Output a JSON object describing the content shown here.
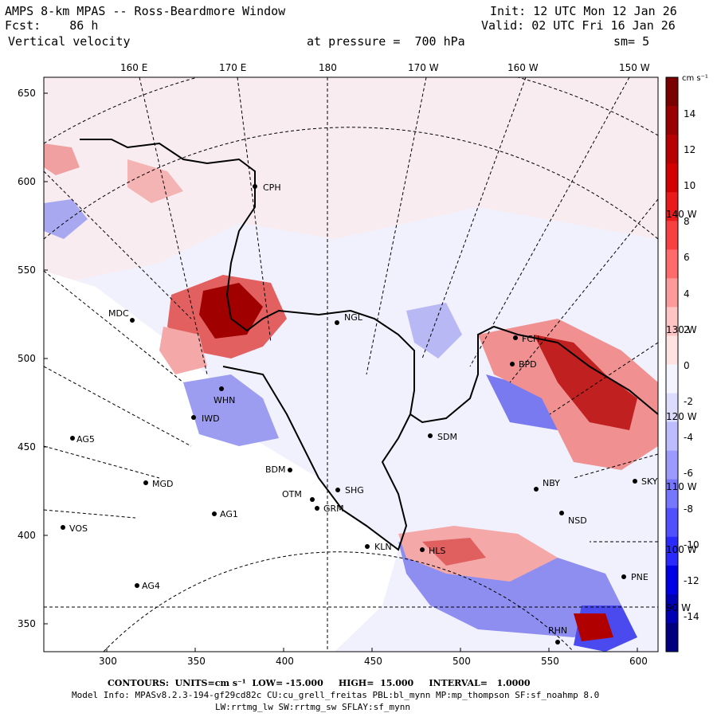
{
  "header": {
    "title": "AMPS 8-km MPAS -- Ross-Beardmore Window",
    "fcst": "Fcst:    86 h",
    "field": "Vertical velocity",
    "init": "Init: 12 UTC Mon 12 Jan 26",
    "valid": "Valid: 02 UTC Fri 16 Jan 26",
    "pressure": "at pressure =  700 hPa",
    "smooth": "sm= 5"
  },
  "top_labels": [
    "160 E",
    "170 E",
    "180",
    "170 W",
    "160 W",
    "150 W"
  ],
  "left_labels": [
    "650",
    "600",
    "550",
    "500",
    "450",
    "400",
    "350"
  ],
  "bottom_labels": [
    "300",
    "350",
    "400",
    "450",
    "500",
    "550",
    "600"
  ],
  "inner_lon_labels": [
    "140 W",
    "130 W",
    "120 W",
    "110 W",
    "100 W",
    "90 W"
  ],
  "colorbar": {
    "units": "cm s⁻¹",
    "ticks": [
      "14",
      "12",
      "10",
      "8",
      "6",
      "4",
      "2",
      "0",
      "-2",
      "-4",
      "-6",
      "-8",
      "-10",
      "-12",
      "-14"
    ],
    "colors": [
      "#7a0000",
      "#9a0000",
      "#b80000",
      "#d40000",
      "#ea1a1a",
      "#f84040",
      "#ff6a6a",
      "#ff9a9a",
      "#ffc4c4",
      "#ffe2e2",
      "#f4f4ff",
      "#dcdcff",
      "#bcbcff",
      "#9a9aff",
      "#7676ff",
      "#5050ff",
      "#2a2aff",
      "#0000e6",
      "#0000b4",
      "#000080"
    ]
  },
  "stations": [
    {
      "code": "CPH"
    },
    {
      "code": "MDC"
    },
    {
      "code": "NGL"
    },
    {
      "code": "WHN"
    },
    {
      "code": "IWD"
    },
    {
      "code": "AG5"
    },
    {
      "code": "BDM"
    },
    {
      "code": "SDM"
    },
    {
      "code": "MGD"
    },
    {
      "code": "SHG"
    },
    {
      "code": "OTM"
    },
    {
      "code": "GRM"
    },
    {
      "code": "AG1"
    },
    {
      "code": "VOS"
    },
    {
      "code": "KLN"
    },
    {
      "code": "HLS"
    },
    {
      "code": "AG4"
    },
    {
      "code": "NBY"
    },
    {
      "code": "NSD"
    },
    {
      "code": "PNE"
    },
    {
      "code": "RHN"
    },
    {
      "code": "FCH"
    },
    {
      "code": "BPD"
    },
    {
      "code": "SKY"
    }
  ],
  "footer": {
    "contours": "CONTOURS:  UNITS=cm s⁻¹  LOW= -15.000     HIGH=  15.000     INTERVAL=   1.0000",
    "model": "Model Info: MPASv8.2.3-194-gf29cd82c CU:cu_grell_freitas PBL:bl_mynn MP:mp_thompson SF:sf_noahmp 8.0",
    "physics": "LW:rrtmg_lw SW:rrtmg_sw SFLAY:sf_mynn"
  }
}
